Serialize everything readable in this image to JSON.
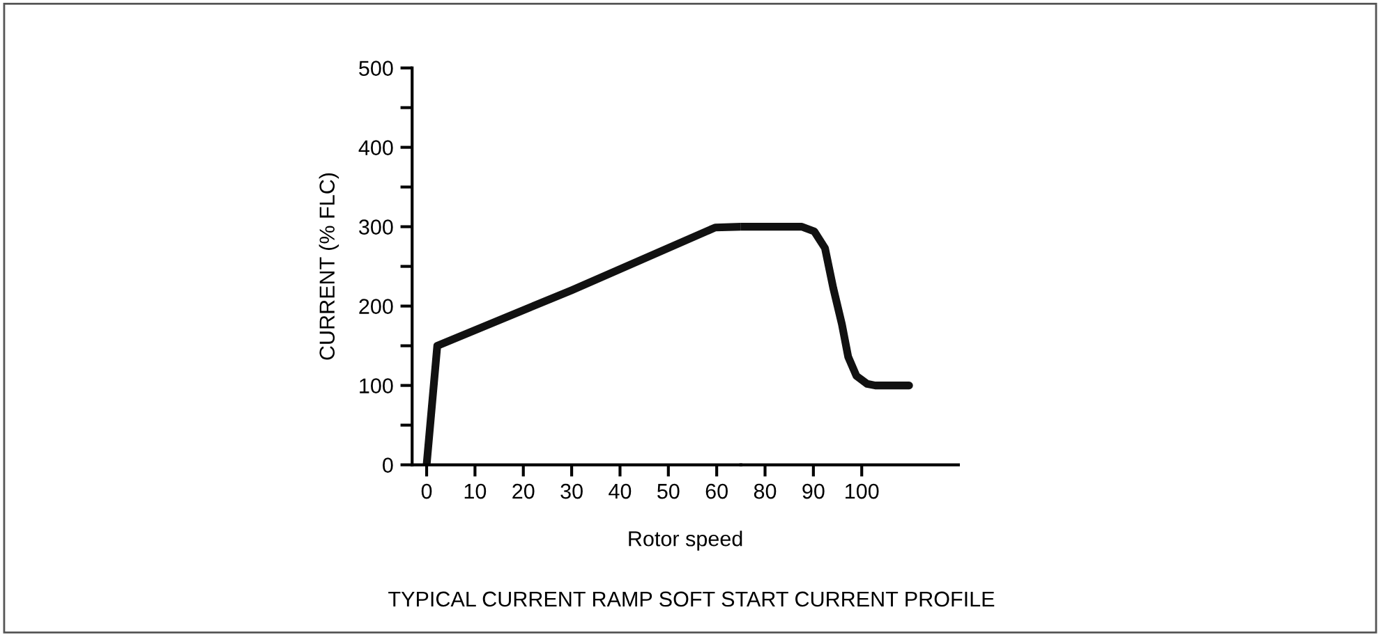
{
  "chart_data": [
    {
      "type": "line",
      "title": "TYPICAL CURRENT RAMP SOFT START CURRENT PROFILE",
      "ylabel": "CURRENT (% FLC)",
      "series": [
        {
          "color": "#111111",
          "x": [
            0,
            2.2,
            30,
            59.7,
            65
          ],
          "values": [
            0,
            150,
            220,
            299,
            300
          ]
        }
      ],
      "xlim": [
        -3,
        65
      ],
      "ylim": [
        0,
        500
      ],
      "xticks": [
        0,
        10,
        20,
        30,
        40,
        50,
        60
      ],
      "yticks": [
        0,
        {
          "value": 50,
          "label": null
        },
        100,
        {
          "value": 150,
          "label": null
        },
        200,
        {
          "value": 250,
          "label": null
        },
        300,
        {
          "value": 350,
          "label": null
        },
        400,
        {
          "value": 450,
          "label": null
        },
        500
      ],
      "marker": "none",
      "line_style": "solid"
    },
    {
      "type": "line",
      "xlabel": "Rotor speed",
      "series": [
        {
          "color": "#111111",
          "x": [
            75,
            87.6,
            90.2,
            92.4,
            94.1,
            95.9,
            97.2,
            98.9,
            101.1,
            102.8,
            109.8
          ],
          "values": [
            300,
            300,
            294,
            273,
            223,
            177,
            136,
            112,
            102,
            100,
            100
          ]
        }
      ],
      "xlim": [
        75,
        120
      ],
      "ylim": [
        0,
        500
      ],
      "xticks": [
        80,
        90,
        100
      ],
      "tick_labels": "x",
      "marker": "none",
      "line_style": "solid"
    }
  ]
}
